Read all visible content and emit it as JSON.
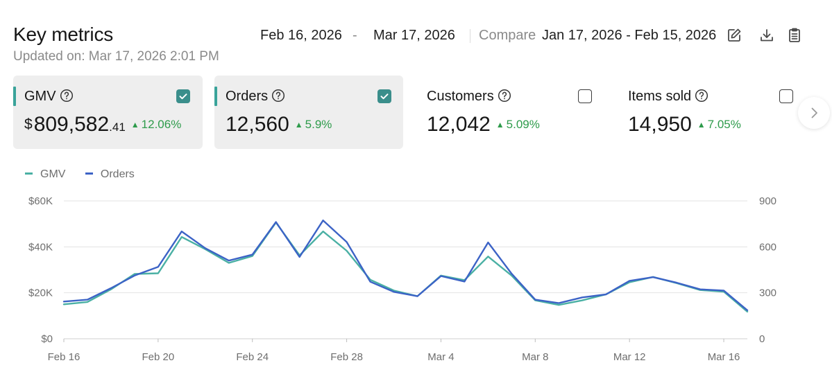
{
  "header": {
    "title": "Key metrics",
    "updated": "Updated on: Mar 17, 2026 2:01 PM",
    "date_start": "Feb 16, 2026",
    "date_sep": "-",
    "date_end": "Mar 17, 2026",
    "compare_label": "Compare",
    "compare_range": "Jan 17, 2026 - Feb 15, 2026",
    "tools": [
      "edit-icon",
      "download-icon",
      "clipboard-icon"
    ]
  },
  "cards": [
    {
      "label": "GMV",
      "currency": "$",
      "value": "809,582",
      "cents": ".41",
      "change": "12.06%",
      "selected": true,
      "checked": true
    },
    {
      "label": "Orders",
      "value": "12,560",
      "change": "5.9%",
      "selected": true,
      "checked": true
    },
    {
      "label": "Customers",
      "value": "12,042",
      "change": "5.09%",
      "selected": false,
      "checked": false
    },
    {
      "label": "Items sold",
      "value": "14,950",
      "change": "7.05%",
      "selected": false,
      "checked": false
    }
  ],
  "colors": {
    "gmv": "#4ab0a4",
    "orders": "#3c63c6",
    "positive": "#2e9b4b",
    "accent": "#3aa39a",
    "grid": "#e3e3e3",
    "axis_text": "#6e6e6e"
  },
  "chart_data": {
    "type": "line",
    "legend_position": "top-left",
    "grid": true,
    "x_tick_labels": [
      "Feb 16",
      "Feb 20",
      "Feb 24",
      "Feb 28",
      "Mar 4",
      "Mar 8",
      "Mar 12",
      "Mar 16"
    ],
    "x": [
      "Feb 16",
      "Feb 17",
      "Feb 18",
      "Feb 19",
      "Feb 20",
      "Feb 21",
      "Feb 22",
      "Feb 23",
      "Feb 24",
      "Feb 25",
      "Feb 26",
      "Feb 27",
      "Feb 28",
      "Mar 1",
      "Mar 2",
      "Mar 3",
      "Mar 4",
      "Mar 5",
      "Mar 6",
      "Mar 7",
      "Mar 8",
      "Mar 9",
      "Mar 10",
      "Mar 11",
      "Mar 12",
      "Mar 13",
      "Mar 14",
      "Mar 15",
      "Mar 16",
      "Mar 17"
    ],
    "y_left": {
      "ticks": [
        "$0",
        "$20K",
        "$40K",
        "$60K"
      ],
      "min": 0,
      "max": 60000
    },
    "y_right": {
      "ticks": [
        "0",
        "300",
        "600",
        "900"
      ],
      "min": 0,
      "max": 900
    },
    "series": [
      {
        "name": "GMV",
        "axis": "left",
        "values": [
          15000,
          16000,
          21500,
          28200,
          28500,
          44300,
          39000,
          33000,
          36000,
          50600,
          36300,
          46700,
          38300,
          25700,
          21000,
          18500,
          27500,
          25500,
          35800,
          27500,
          16700,
          14700,
          16700,
          19300,
          24600,
          26900,
          24200,
          21200,
          20500,
          11800
        ]
      },
      {
        "name": "Orders",
        "axis": "left",
        "values": [
          16200,
          17000,
          22000,
          27500,
          31300,
          46700,
          39400,
          34000,
          36600,
          50800,
          35600,
          51500,
          42100,
          24800,
          20400,
          18500,
          27300,
          24900,
          41900,
          28300,
          17000,
          15500,
          18000,
          19300,
          25200,
          26800,
          24400,
          21500,
          21000,
          12400
        ]
      }
    ]
  }
}
